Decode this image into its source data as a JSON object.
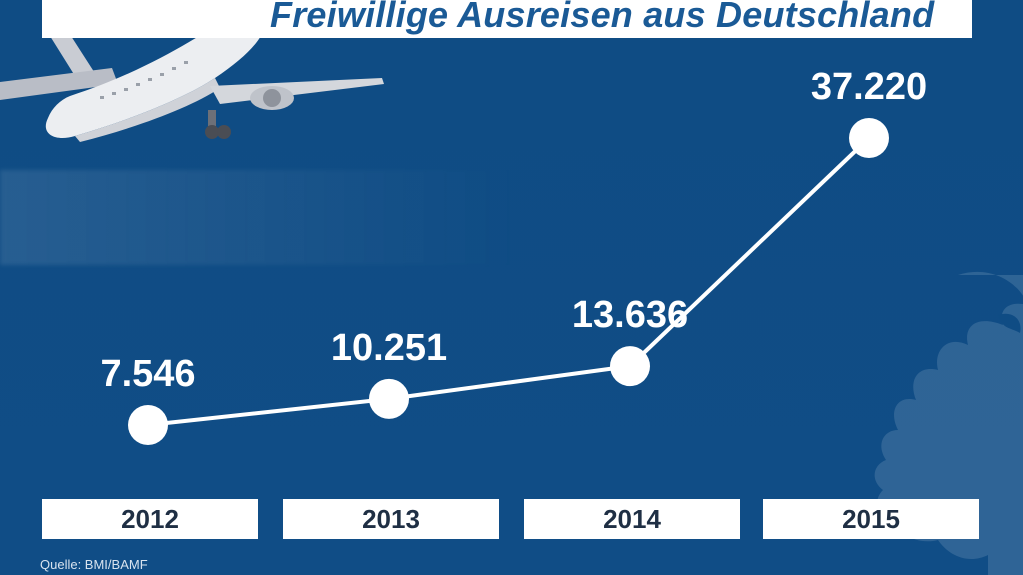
{
  "chart_data": {
    "type": "line",
    "title": "Freiwillige Ausreisen aus Deutschland",
    "categories": [
      "2012",
      "2013",
      "2014",
      "2015"
    ],
    "values": [
      7546,
      10251,
      13636,
      37220
    ],
    "value_labels": [
      "7.546",
      "10.251",
      "13.636",
      "37.220"
    ],
    "grid": false,
    "legend": "none"
  },
  "source": "Quelle: BMI/BAMF",
  "colors": {
    "background": "#0f4c84",
    "title_text": "#1a5a96",
    "line": "#ffffff",
    "year_box": "#ffffff"
  },
  "decorations": [
    "airplane-icon",
    "federal-eagle-icon"
  ]
}
